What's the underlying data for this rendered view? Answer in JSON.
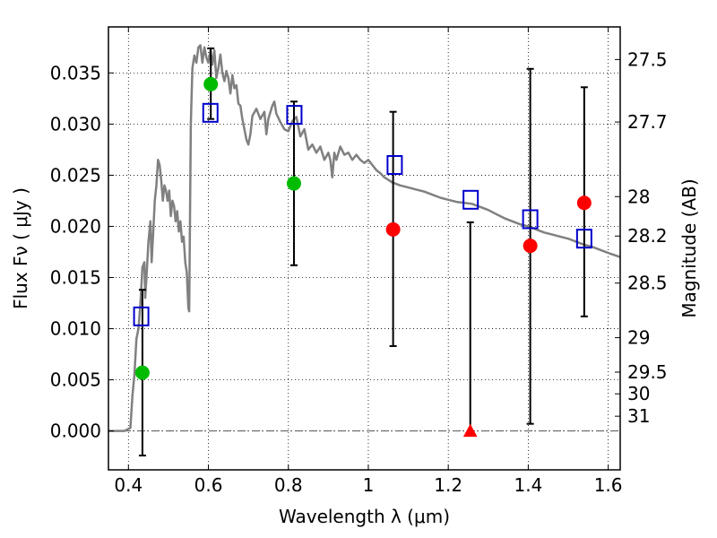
{
  "chart_data": {
    "type": "scatter",
    "xlabel": "Wavelength  λ (μm)",
    "ylabel": "Flux  Fν  ( μJy )",
    "ylabel_right": "Magnitude (AB)",
    "xlim": [
      0.35,
      1.63
    ],
    "ylim": [
      -0.0038,
      0.0395
    ],
    "grid": true,
    "x_ticks": [
      {
        "value": 0.4,
        "label": "0.4"
      },
      {
        "value": 0.6,
        "label": "0.6"
      },
      {
        "value": 0.8,
        "label": "0.8"
      },
      {
        "value": 1.0,
        "label": "1"
      },
      {
        "value": 1.2,
        "label": "1.2"
      },
      {
        "value": 1.4,
        "label": "1.4"
      },
      {
        "value": 1.6,
        "label": "1.6"
      }
    ],
    "y_ticks": [
      {
        "value": 0.0,
        "label": "0.000"
      },
      {
        "value": 0.005,
        "label": "0.005"
      },
      {
        "value": 0.01,
        "label": "0.010"
      },
      {
        "value": 0.015,
        "label": "0.015"
      },
      {
        "value": 0.02,
        "label": "0.020"
      },
      {
        "value": 0.025,
        "label": "0.025"
      },
      {
        "value": 0.03,
        "label": "0.030"
      },
      {
        "value": 0.035,
        "label": "0.035"
      }
    ],
    "right_ticks": [
      {
        "value": 27.5,
        "label": "27.5"
      },
      {
        "value": 27.7,
        "label": "27.7"
      },
      {
        "value": 28.0,
        "label": "28"
      },
      {
        "value": 28.2,
        "label": "28.2"
      },
      {
        "value": 28.5,
        "label": "28.5"
      },
      {
        "value": 29.0,
        "label": "29"
      },
      {
        "value": 29.5,
        "label": "29.5"
      },
      {
        "value": 30.0,
        "label": "30"
      },
      {
        "value": 31.0,
        "label": "31"
      }
    ],
    "model_spectrum": {
      "color": "#808080",
      "points": [
        [
          0.35,
          0.0
        ],
        [
          0.39,
          0.0
        ],
        [
          0.405,
          0.0003
        ],
        [
          0.41,
          0.0035
        ],
        [
          0.415,
          0.0055
        ],
        [
          0.42,
          0.009
        ],
        [
          0.425,
          0.01
        ],
        [
          0.43,
          0.0125
        ],
        [
          0.435,
          0.016
        ],
        [
          0.44,
          0.0165
        ],
        [
          0.442,
          0.013
        ],
        [
          0.445,
          0.015
        ],
        [
          0.45,
          0.0185
        ],
        [
          0.455,
          0.0205
        ],
        [
          0.458,
          0.0165
        ],
        [
          0.462,
          0.0195
        ],
        [
          0.466,
          0.0225
        ],
        [
          0.47,
          0.024
        ],
        [
          0.474,
          0.0265
        ],
        [
          0.478,
          0.026
        ],
        [
          0.482,
          0.0245
        ],
        [
          0.486,
          0.0225
        ],
        [
          0.49,
          0.024
        ],
        [
          0.494,
          0.0235
        ],
        [
          0.498,
          0.0225
        ],
        [
          0.502,
          0.0235
        ],
        [
          0.506,
          0.021
        ],
        [
          0.51,
          0.0225
        ],
        [
          0.514,
          0.022
        ],
        [
          0.518,
          0.0205
        ],
        [
          0.522,
          0.0215
        ],
        [
          0.526,
          0.0195
        ],
        [
          0.53,
          0.0205
        ],
        [
          0.534,
          0.0185
        ],
        [
          0.538,
          0.019
        ],
        [
          0.542,
          0.0165
        ],
        [
          0.546,
          0.0155
        ],
        [
          0.55,
          0.012
        ],
        [
          0.552,
          0.0117
        ],
        [
          0.556,
          0.03
        ],
        [
          0.56,
          0.0355
        ],
        [
          0.565,
          0.0367
        ],
        [
          0.57,
          0.036
        ],
        [
          0.575,
          0.0375
        ],
        [
          0.58,
          0.0377
        ],
        [
          0.585,
          0.036
        ],
        [
          0.59,
          0.0375
        ],
        [
          0.595,
          0.0365
        ],
        [
          0.6,
          0.036
        ],
        [
          0.605,
          0.0372
        ],
        [
          0.61,
          0.0358
        ],
        [
          0.615,
          0.0372
        ],
        [
          0.62,
          0.0345
        ],
        [
          0.625,
          0.0355
        ],
        [
          0.63,
          0.0368
        ],
        [
          0.635,
          0.035
        ],
        [
          0.64,
          0.0342
        ],
        [
          0.645,
          0.0352
        ],
        [
          0.65,
          0.0345
        ],
        [
          0.655,
          0.033
        ],
        [
          0.66,
          0.0348
        ],
        [
          0.665,
          0.0335
        ],
        [
          0.67,
          0.0338
        ],
        [
          0.675,
          0.032
        ],
        [
          0.68,
          0.0318
        ],
        [
          0.685,
          0.0305
        ],
        [
          0.69,
          0.0295
        ],
        [
          0.695,
          0.0285
        ],
        [
          0.7,
          0.028
        ],
        [
          0.705,
          0.029
        ],
        [
          0.71,
          0.0308
        ],
        [
          0.72,
          0.0315
        ],
        [
          0.73,
          0.0305
        ],
        [
          0.74,
          0.0312
        ],
        [
          0.745,
          0.029
        ],
        [
          0.75,
          0.0305
        ],
        [
          0.76,
          0.0318
        ],
        [
          0.765,
          0.0322
        ],
        [
          0.77,
          0.031
        ],
        [
          0.78,
          0.0302
        ],
        [
          0.79,
          0.0295
        ],
        [
          0.8,
          0.0293
        ],
        [
          0.81,
          0.0303
        ],
        [
          0.82,
          0.0307
        ],
        [
          0.83,
          0.0288
        ],
        [
          0.84,
          0.0295
        ],
        [
          0.85,
          0.0275
        ],
        [
          0.86,
          0.028
        ],
        [
          0.87,
          0.0272
        ],
        [
          0.88,
          0.0278
        ],
        [
          0.89,
          0.0265
        ],
        [
          0.9,
          0.0272
        ],
        [
          0.905,
          0.0265
        ],
        [
          0.91,
          0.0248
        ],
        [
          0.915,
          0.0272
        ],
        [
          0.92,
          0.0265
        ],
        [
          0.93,
          0.0278
        ],
        [
          0.94,
          0.027
        ],
        [
          0.95,
          0.0272
        ],
        [
          0.96,
          0.0265
        ],
        [
          0.97,
          0.027
        ],
        [
          0.98,
          0.0265
        ],
        [
          0.99,
          0.0262
        ],
        [
          1.0,
          0.0265
        ],
        [
          1.01,
          0.026
        ],
        [
          1.02,
          0.0255
        ],
        [
          1.03,
          0.0252
        ],
        [
          1.04,
          0.0248
        ],
        [
          1.06,
          0.0243
        ],
        [
          1.08,
          0.024
        ],
        [
          1.1,
          0.0238
        ],
        [
          1.12,
          0.0236
        ],
        [
          1.14,
          0.0234
        ],
        [
          1.16,
          0.0231
        ],
        [
          1.18,
          0.0228
        ],
        [
          1.2,
          0.0226
        ],
        [
          1.22,
          0.0224
        ],
        [
          1.24,
          0.0223
        ],
        [
          1.26,
          0.0222
        ],
        [
          1.28,
          0.0219
        ],
        [
          1.3,
          0.0216
        ],
        [
          1.32,
          0.0212
        ],
        [
          1.34,
          0.0208
        ],
        [
          1.36,
          0.0205
        ],
        [
          1.38,
          0.0202
        ],
        [
          1.4,
          0.02
        ],
        [
          1.42,
          0.0197
        ],
        [
          1.44,
          0.0194
        ],
        [
          1.46,
          0.0192
        ],
        [
          1.48,
          0.019
        ],
        [
          1.5,
          0.0188
        ],
        [
          1.52,
          0.0185
        ],
        [
          1.54,
          0.0182
        ],
        [
          1.56,
          0.018
        ],
        [
          1.58,
          0.0177
        ],
        [
          1.6,
          0.0174
        ],
        [
          1.63,
          0.017
        ]
      ]
    },
    "measurements": [
      {
        "x": 0.435,
        "y": 0.0057,
        "err_low": -0.0024,
        "err_high": 0.0138,
        "marker": "circle",
        "color": "#00bb00"
      },
      {
        "x": 0.606,
        "y": 0.0339,
        "err_low": 0.0305,
        "err_high": 0.0374,
        "marker": "circle",
        "color": "#00bb00"
      },
      {
        "x": 0.814,
        "y": 0.0242,
        "err_low": 0.0162,
        "err_high": 0.0322,
        "marker": "circle",
        "color": "#00bb00"
      },
      {
        "x": 1.062,
        "y": 0.0197,
        "err_low": 0.0083,
        "err_high": 0.0312,
        "marker": "circle",
        "color": "#ff0000"
      },
      {
        "x": 1.255,
        "y": 0.0,
        "err_low": 0.0,
        "err_high": 0.0204,
        "marker": "triangle",
        "color": "#ff0000"
      },
      {
        "x": 1.405,
        "y": 0.0181,
        "err_low": 0.0007,
        "err_high": 0.0354,
        "marker": "circle",
        "color": "#ff0000"
      },
      {
        "x": 1.54,
        "y": 0.0223,
        "err_low": 0.0112,
        "err_high": 0.0336,
        "marker": "circle",
        "color": "#ff0000"
      }
    ],
    "model_bandpass": {
      "marker": "square",
      "color": "#0000cc",
      "points": [
        {
          "x": 0.432,
          "y": 0.0112
        },
        {
          "x": 0.605,
          "y": 0.0311
        },
        {
          "x": 0.815,
          "y": 0.0309
        },
        {
          "x": 1.066,
          "y": 0.026
        },
        {
          "x": 1.256,
          "y": 0.0226
        },
        {
          "x": 1.405,
          "y": 0.0207
        },
        {
          "x": 1.54,
          "y": 0.0188
        }
      ]
    },
    "zero_line_color": "#555555"
  }
}
